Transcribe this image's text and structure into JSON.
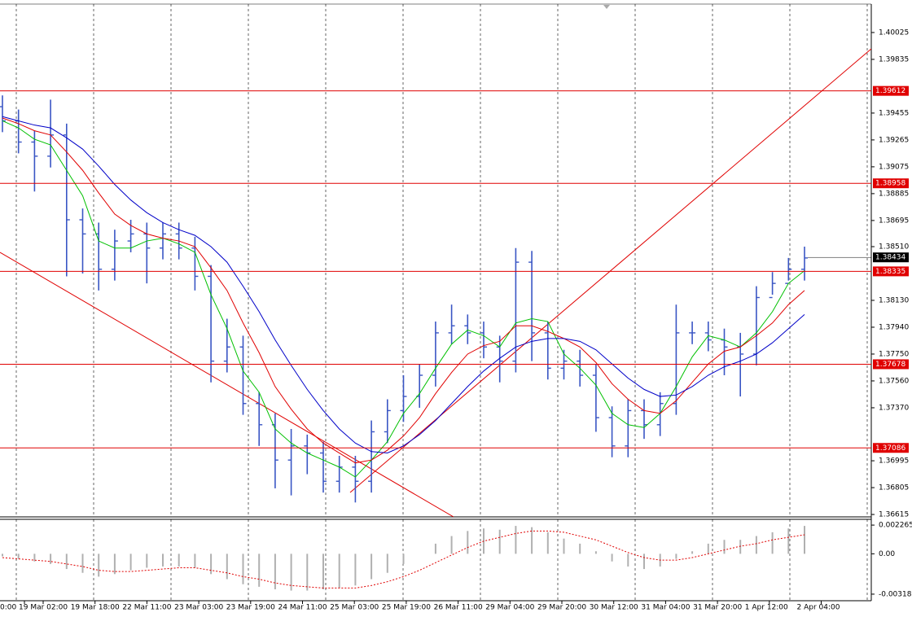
{
  "chart_data": {
    "type": "candlestick",
    "color": "#3a56c4",
    "open": [
      1.395,
      1.394,
      1.3925,
      1.3915,
      1.393,
      1.387,
      1.386,
      1.3835,
      1.3855,
      1.386,
      1.385,
      1.386,
      1.385,
      1.383,
      1.377,
      1.378,
      1.374,
      1.3725,
      1.37,
      1.371,
      1.3705,
      1.3685,
      1.3695,
      1.3685,
      1.372,
      1.3735,
      1.3745,
      1.376,
      1.379,
      1.3795,
      1.379,
      1.378,
      1.377,
      1.384,
      1.379,
      1.3765,
      1.377,
      1.376,
      1.373,
      1.371,
      1.3735,
      1.3725,
      1.374,
      1.379,
      1.379,
      1.3785,
      1.378,
      1.3775,
      1.3815,
      1.3825,
      1.3835
    ],
    "high": [
      1.3958,
      1.3948,
      1.3933,
      1.3955,
      1.3938,
      1.3878,
      1.3868,
      1.3863,
      1.387,
      1.3868,
      1.3868,
      1.3868,
      1.3858,
      1.3838,
      1.38,
      1.3788,
      1.3748,
      1.3733,
      1.3722,
      1.3718,
      1.3713,
      1.3703,
      1.3703,
      1.3728,
      1.3743,
      1.376,
      1.3768,
      1.3798,
      1.381,
      1.3803,
      1.3798,
      1.3788,
      1.385,
      1.3848,
      1.3798,
      1.3778,
      1.3778,
      1.3768,
      1.3738,
      1.3743,
      1.3743,
      1.3748,
      1.381,
      1.3798,
      1.3798,
      1.3793,
      1.379,
      1.3823,
      1.3833,
      1.3843,
      1.3851
    ],
    "low": [
      1.3932,
      1.3917,
      1.389,
      1.3907,
      1.383,
      1.3832,
      1.382,
      1.3827,
      1.3847,
      1.3825,
      1.3842,
      1.3842,
      1.382,
      1.3755,
      1.3762,
      1.3732,
      1.371,
      1.368,
      1.3675,
      1.369,
      1.3677,
      1.3677,
      1.367,
      1.3677,
      1.3712,
      1.3727,
      1.3737,
      1.3752,
      1.3782,
      1.3782,
      1.3772,
      1.3755,
      1.3762,
      1.377,
      1.3757,
      1.3757,
      1.3752,
      1.372,
      1.3702,
      1.3702,
      1.3715,
      1.3717,
      1.3732,
      1.3782,
      1.3777,
      1.376,
      1.3745,
      1.3767,
      1.3817,
      1.3827,
      1.3827
    ],
    "close": [
      1.394,
      1.3925,
      1.3915,
      1.393,
      1.387,
      1.386,
      1.3835,
      1.3855,
      1.386,
      1.385,
      1.386,
      1.385,
      1.383,
      1.377,
      1.378,
      1.374,
      1.3725,
      1.37,
      1.371,
      1.3705,
      1.3685,
      1.3695,
      1.3685,
      1.372,
      1.3735,
      1.3745,
      1.376,
      1.379,
      1.3795,
      1.379,
      1.378,
      1.377,
      1.384,
      1.379,
      1.3765,
      1.377,
      1.376,
      1.373,
      1.371,
      1.3735,
      1.3725,
      1.374,
      1.379,
      1.379,
      1.3785,
      1.378,
      1.3775,
      1.3815,
      1.3825,
      1.3835,
      1.3843
    ],
    "moving_averages": [
      {
        "color": "#00c000",
        "values": [
          1.394,
          1.3935,
          1.3927,
          1.3923,
          1.3905,
          1.3887,
          1.3855,
          1.385,
          1.385,
          1.3855,
          1.3857,
          1.3853,
          1.3847,
          1.3817,
          1.3793,
          1.3763,
          1.3748,
          1.3722,
          1.3712,
          1.3705,
          1.37,
          1.3695,
          1.3688,
          1.37,
          1.3713,
          1.3733,
          1.3747,
          1.3765,
          1.3782,
          1.3792,
          1.3788,
          1.378,
          1.3797,
          1.38,
          1.3798,
          1.3775,
          1.3765,
          1.3753,
          1.3733,
          1.3725,
          1.3723,
          1.3733,
          1.3752,
          1.3773,
          1.3788,
          1.3785,
          1.378,
          1.379,
          1.3805,
          1.3825,
          1.3834
        ]
      },
      {
        "color": "#e00000",
        "values": [
          1.3942,
          1.3938,
          1.3933,
          1.393,
          1.3918,
          1.3905,
          1.3889,
          1.3874,
          1.3866,
          1.386,
          1.3857,
          1.3855,
          1.3851,
          1.3836,
          1.382,
          1.3797,
          1.3776,
          1.3752,
          1.3736,
          1.3722,
          1.3712,
          1.3705,
          1.3698,
          1.37,
          1.3707,
          1.3717,
          1.373,
          1.3747,
          1.3762,
          1.3775,
          1.3781,
          1.3784,
          1.3795,
          1.3795,
          1.3791,
          1.3786,
          1.378,
          1.3769,
          1.3754,
          1.3743,
          1.3735,
          1.3733,
          1.3742,
          1.3755,
          1.3768,
          1.3777,
          1.378,
          1.3788,
          1.3797,
          1.381,
          1.382
        ]
      },
      {
        "color": "#0000c8",
        "values": [
          1.3943,
          1.394,
          1.3937,
          1.3935,
          1.3928,
          1.392,
          1.3908,
          1.3895,
          1.3884,
          1.3875,
          1.3868,
          1.3863,
          1.3859,
          1.3851,
          1.384,
          1.3823,
          1.3805,
          1.3785,
          1.3767,
          1.375,
          1.3735,
          1.3722,
          1.3712,
          1.3706,
          1.3705,
          1.371,
          1.3718,
          1.3728,
          1.374,
          1.3752,
          1.3763,
          1.3772,
          1.378,
          1.3784,
          1.3786,
          1.3786,
          1.3784,
          1.3778,
          1.3768,
          1.3758,
          1.375,
          1.3745,
          1.3746,
          1.3752,
          1.376,
          1.3766,
          1.377,
          1.3775,
          1.3783,
          1.3793,
          1.3803
        ]
      }
    ],
    "ylim": [
      1.36598,
      1.40255
    ],
    "yticks": [
      1.40025,
      1.39835,
      1.39455,
      1.39265,
      1.39075,
      1.38885,
      1.38695,
      {
        "value": 1.3851,
        "label": "1.38510"
      },
      {
        "value": 1.3813,
        "label": "1.38130"
      },
      {
        "value": 1.3794,
        "label": "1.37940"
      },
      {
        "value": 1.3775,
        "label": "1.37750"
      },
      {
        "value": 1.3756,
        "label": "1.37560"
      },
      {
        "value": 1.3737,
        "label": "1.37370"
      },
      1.36995,
      1.36805,
      1.36615
    ],
    "levels": [
      1.39612,
      1.38958,
      1.38335,
      1.37678,
      1.37086
    ],
    "level_color": "#e00000",
    "current_price": 1.38434,
    "x_labels": [
      "0:00",
      "19 Mar 02:00",
      "19 Mar 18:00",
      "22 Mar 11:00",
      "23 Mar 03:00",
      "23 Mar 19:00",
      "24 Mar 11:00",
      "25 Mar 03:00",
      "25 Mar 19:00",
      "26 Mar 11:00",
      "29 Mar 04:00",
      "29 Mar 20:00",
      "30 Mar 12:00",
      "31 Mar 04:00",
      "31 Mar 20:00",
      "1 Apr 12:00",
      "2 Apr 04:00"
    ],
    "macd": {
      "histogram_color": "#b0b0b0",
      "signal_color": "#e00000",
      "histogram": [
        -0.0002,
        -0.0004,
        -0.0006,
        -0.0008,
        -0.0012,
        -0.0015,
        -0.0018,
        -0.0016,
        -0.0013,
        -0.0011,
        -0.001,
        -0.001,
        -0.0011,
        -0.0016,
        -0.002,
        -0.0024,
        -0.0026,
        -0.0028,
        -0.0029,
        -0.0029,
        -0.0028,
        -0.0027,
        -0.0025,
        -0.002,
        -0.0015,
        -0.0008,
        0.0,
        0.0008,
        0.0014,
        0.0018,
        0.002,
        0.0019,
        0.0022,
        0.0021,
        0.0017,
        0.0012,
        0.0008,
        0.0002,
        -0.0006,
        -0.001,
        -0.0012,
        -0.001,
        -0.0004,
        0.0002,
        0.0008,
        0.0011,
        0.0011,
        0.0014,
        0.0017,
        0.002,
        0.0022
      ],
      "signal": [
        -0.0003,
        -0.0004,
        -0.0005,
        -0.0006,
        -0.0008,
        -0.001,
        -0.0013,
        -0.0014,
        -0.0014,
        -0.0013,
        -0.0012,
        -0.0011,
        -0.0011,
        -0.0013,
        -0.0015,
        -0.0018,
        -0.002,
        -0.0023,
        -0.0025,
        -0.0026,
        -0.0027,
        -0.0027,
        -0.0027,
        -0.0025,
        -0.0022,
        -0.0018,
        -0.0013,
        -0.0007,
        -0.0001,
        0.0005,
        0.001,
        0.0013,
        0.0016,
        0.0018,
        0.0018,
        0.0017,
        0.0014,
        0.0011,
        0.0006,
        0.0001,
        -0.0003,
        -0.0005,
        -0.0005,
        -0.0003,
        0.0,
        0.0003,
        0.0006,
        0.0008,
        0.0011,
        0.0013,
        0.0015
      ],
      "ylim": [
        -0.0037,
        0.00272
      ],
      "yticks": [
        0.002265,
        {
          "value": 0,
          "label": "0.00"
        },
        -0.003182
      ]
    }
  }
}
